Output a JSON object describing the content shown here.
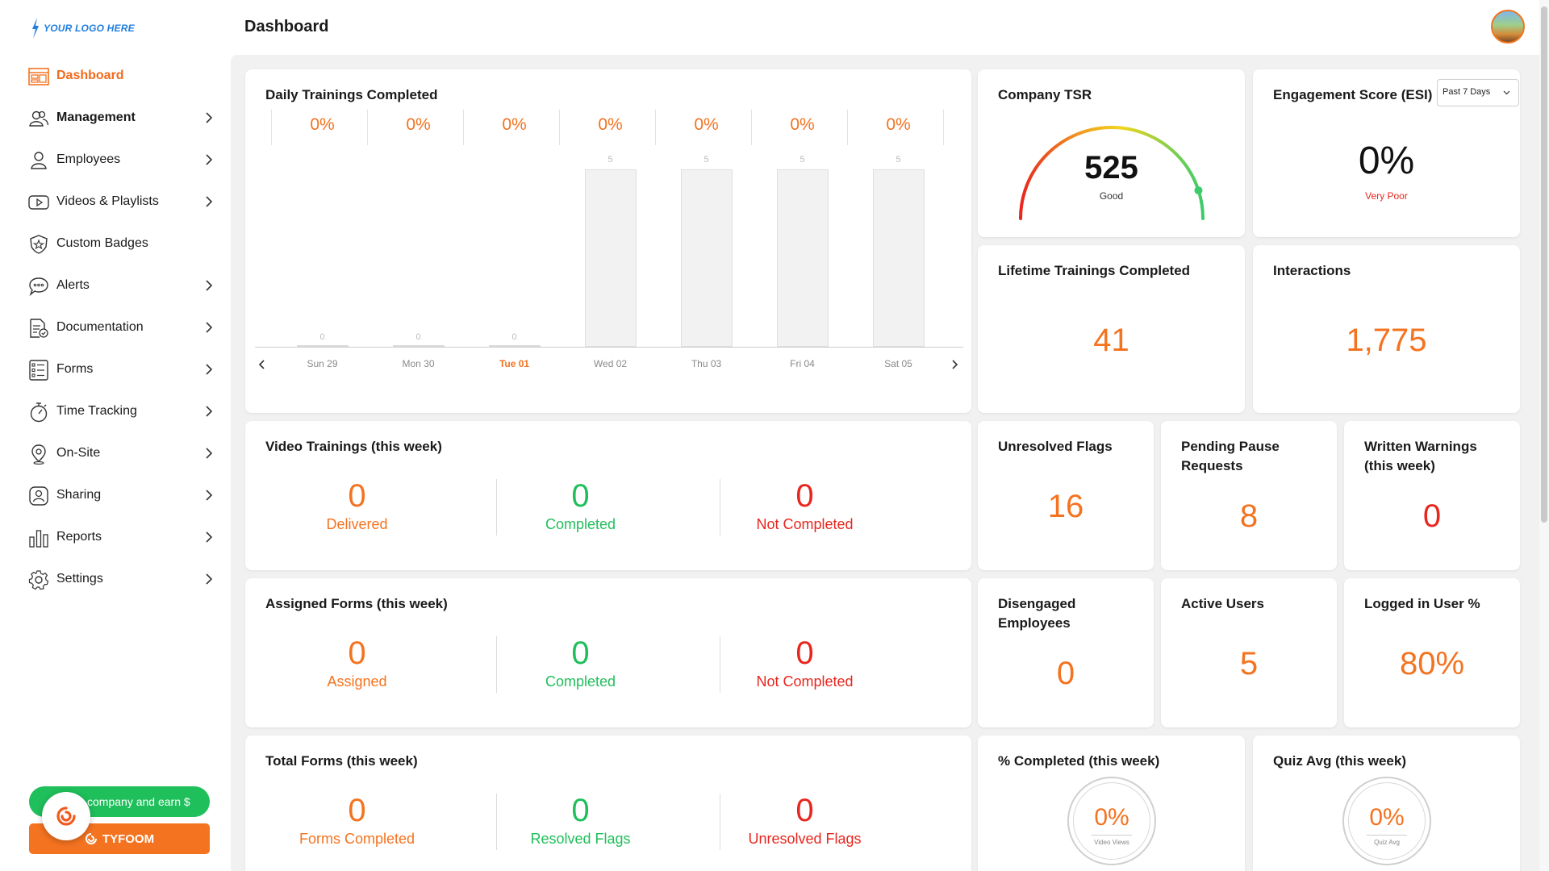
{
  "logo": {
    "text": "YOUR LOGO HERE"
  },
  "sidebar": {
    "items": [
      {
        "label": "Dashboard",
        "icon": "dashboard-icon"
      },
      {
        "label": "Management",
        "icon": "users-icon"
      },
      {
        "label": "Employees",
        "icon": "person-icon"
      },
      {
        "label": "Videos & Playlists",
        "icon": "video-icon"
      },
      {
        "label": "Custom Badges",
        "icon": "badge-icon"
      },
      {
        "label": "Alerts",
        "icon": "chat-bubble-icon"
      },
      {
        "label": "Documentation",
        "icon": "document-icon"
      },
      {
        "label": "Forms",
        "icon": "list-icon"
      },
      {
        "label": "Time Tracking",
        "icon": "stopwatch-icon"
      },
      {
        "label": "On-Site",
        "icon": "location-pin-icon"
      },
      {
        "label": "Sharing",
        "icon": "share-icon"
      },
      {
        "label": "Reports",
        "icon": "bar-chart-icon"
      },
      {
        "label": "Settings",
        "icon": "gear-icon"
      }
    ],
    "refer_label": "R... company and earn $",
    "brand_button": "TYFOOM"
  },
  "header": {
    "title": "Dashboard"
  },
  "daily_trainings": {
    "title": "Daily Trainings Completed",
    "percents": [
      "0%",
      "0%",
      "0%",
      "0%",
      "0%",
      "0%",
      "0%"
    ],
    "bar_labels": [
      "0",
      "0",
      "0",
      "5",
      "5",
      "5",
      "5"
    ],
    "days": [
      "Sun 29",
      "Mon 30",
      "Tue 01",
      "Wed 02",
      "Thu 03",
      "Fri 04",
      "Sat 05"
    ]
  },
  "chart_data": {
    "type": "bar",
    "categories": [
      "Sun 29",
      "Mon 30",
      "Tue 01",
      "Wed 02",
      "Thu 03",
      "Fri 04",
      "Sat 05"
    ],
    "values": [
      0,
      0,
      0,
      5,
      5,
      5,
      5
    ],
    "title": "Daily Trainings Completed",
    "percent_labels": [
      "0%",
      "0%",
      "0%",
      "0%",
      "0%",
      "0%",
      "0%"
    ],
    "ylim": [
      0,
      5
    ]
  },
  "company_tsr": {
    "title": "Company TSR",
    "value": "525",
    "rating": "Good",
    "fraction": 0.9
  },
  "engagement": {
    "title": "Engagement Score (ESI)",
    "range": "Past 7 Days",
    "value": "0%",
    "rating": "Very Poor"
  },
  "lifetime": {
    "title": "Lifetime Trainings Completed",
    "value": "41"
  },
  "interactions": {
    "title": "Interactions",
    "value": "1,775"
  },
  "video_trainings": {
    "title": "Video Trainings (this week)",
    "stats": [
      {
        "value": "0",
        "label": "Delivered"
      },
      {
        "value": "0",
        "label": "Completed"
      },
      {
        "value": "0",
        "label": "Not Completed"
      }
    ]
  },
  "assigned_forms": {
    "title": "Assigned Forms (this week)",
    "stats": [
      {
        "value": "0",
        "label": "Assigned"
      },
      {
        "value": "0",
        "label": "Completed"
      },
      {
        "value": "0",
        "label": "Not Completed"
      }
    ]
  },
  "total_forms": {
    "title": "Total Forms (this week)",
    "stats": [
      {
        "value": "0",
        "label": "Forms Completed"
      },
      {
        "value": "0",
        "label": "Resolved Flags"
      },
      {
        "value": "0",
        "label": "Unresolved Flags"
      }
    ]
  },
  "unresolved_flags": {
    "title": "Unresolved Flags",
    "value": "16"
  },
  "pending_pause": {
    "title_line1": "Pending Pause",
    "title_line2": "Requests",
    "value": "8"
  },
  "written_warnings": {
    "title_line1": "Written Warnings",
    "title_line2": "(this week)",
    "value": "0"
  },
  "disengaged": {
    "title_line1": "Disengaged",
    "title_line2": "Employees",
    "value": "0"
  },
  "active_users": {
    "title": "Active Users",
    "value": "5"
  },
  "logged_in": {
    "title": "Logged in User %",
    "value": "80%"
  },
  "pct_completed": {
    "title": "% Completed (this week)",
    "value": "0%",
    "sub": "Video Views"
  },
  "quiz_avg": {
    "title": "Quiz Avg (this week)",
    "value": "0%",
    "sub": "Quiz Avg"
  }
}
